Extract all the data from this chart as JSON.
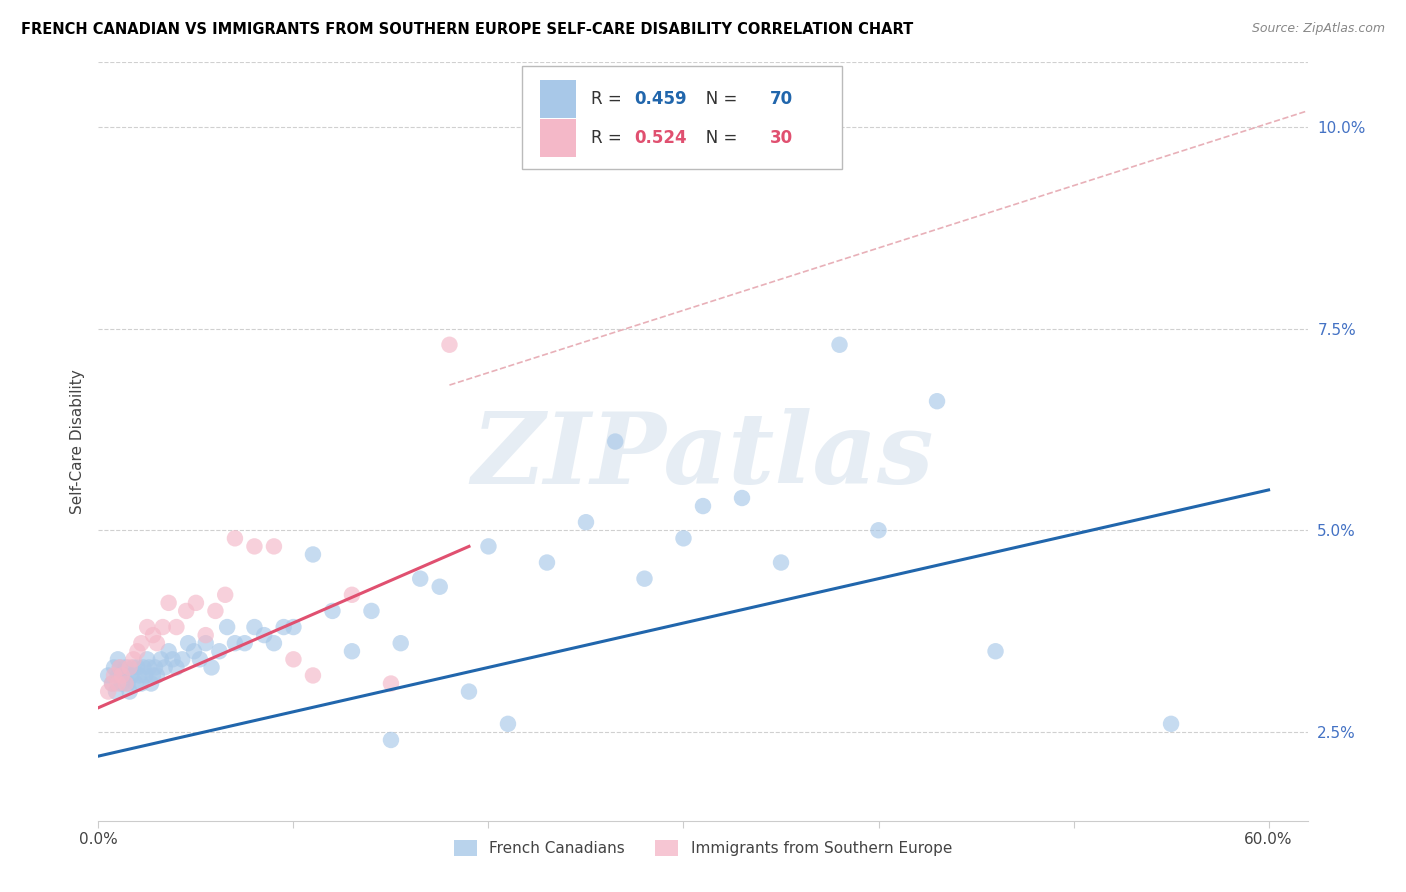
{
  "title": "FRENCH CANADIAN VS IMMIGRANTS FROM SOUTHERN EUROPE SELF-CARE DISABILITY CORRELATION CHART",
  "source": "Source: ZipAtlas.com",
  "ylabel": "Self-Care Disability",
  "watermark": "ZIPatlas",
  "xlim": [
    0.0,
    0.62
  ],
  "ylim": [
    0.014,
    0.108
  ],
  "xticks": [
    0.0,
    0.1,
    0.2,
    0.3,
    0.4,
    0.5,
    0.6
  ],
  "yticks": [
    0.025,
    0.05,
    0.075,
    0.1
  ],
  "ytick_labels": [
    "2.5%",
    "5.0%",
    "7.5%",
    "10.0%"
  ],
  "legend_label1": "French Canadians",
  "legend_label2": "Immigrants from Southern Europe",
  "R1": "0.459",
  "N1": "70",
  "R2": "0.524",
  "N2": "30",
  "color_blue": "#a8c8e8",
  "color_pink": "#f4b8c8",
  "line_color_blue": "#2166ac",
  "line_color_pink": "#e05070",
  "line_color_dashed": "#e8b0b8",
  "blue_line_x0": 0.0,
  "blue_line_y0": 0.022,
  "blue_line_x1": 0.6,
  "blue_line_y1": 0.055,
  "pink_line_x0": 0.0,
  "pink_line_y0": 0.028,
  "pink_line_x1": 0.19,
  "pink_line_y1": 0.048,
  "dashed_line_x": [
    0.18,
    0.62
  ],
  "dashed_line_y": [
    0.068,
    0.102
  ],
  "blue_x": [
    0.005,
    0.007,
    0.008,
    0.009,
    0.01,
    0.01,
    0.011,
    0.012,
    0.013,
    0.014,
    0.015,
    0.016,
    0.017,
    0.018,
    0.019,
    0.02,
    0.021,
    0.022,
    0.023,
    0.024,
    0.025,
    0.026,
    0.027,
    0.028,
    0.029,
    0.03,
    0.032,
    0.034,
    0.036,
    0.038,
    0.04,
    0.043,
    0.046,
    0.049,
    0.052,
    0.055,
    0.058,
    0.062,
    0.066,
    0.07,
    0.075,
    0.08,
    0.085,
    0.09,
    0.095,
    0.1,
    0.11,
    0.12,
    0.13,
    0.14,
    0.15,
    0.155,
    0.165,
    0.175,
    0.19,
    0.2,
    0.21,
    0.23,
    0.25,
    0.265,
    0.28,
    0.3,
    0.31,
    0.33,
    0.35,
    0.38,
    0.4,
    0.43,
    0.46,
    0.55
  ],
  "blue_y": [
    0.032,
    0.031,
    0.033,
    0.03,
    0.032,
    0.034,
    0.033,
    0.031,
    0.032,
    0.033,
    0.031,
    0.03,
    0.032,
    0.033,
    0.031,
    0.033,
    0.032,
    0.031,
    0.033,
    0.032,
    0.034,
    0.033,
    0.031,
    0.032,
    0.033,
    0.032,
    0.034,
    0.033,
    0.035,
    0.034,
    0.033,
    0.034,
    0.036,
    0.035,
    0.034,
    0.036,
    0.033,
    0.035,
    0.038,
    0.036,
    0.036,
    0.038,
    0.037,
    0.036,
    0.038,
    0.038,
    0.047,
    0.04,
    0.035,
    0.04,
    0.024,
    0.036,
    0.044,
    0.043,
    0.03,
    0.048,
    0.026,
    0.046,
    0.051,
    0.061,
    0.044,
    0.049,
    0.053,
    0.054,
    0.046,
    0.073,
    0.05,
    0.066,
    0.035,
    0.026
  ],
  "pink_x": [
    0.005,
    0.007,
    0.008,
    0.01,
    0.011,
    0.012,
    0.014,
    0.016,
    0.018,
    0.02,
    0.022,
    0.025,
    0.028,
    0.03,
    0.033,
    0.036,
    0.04,
    0.045,
    0.05,
    0.055,
    0.06,
    0.065,
    0.07,
    0.08,
    0.09,
    0.1,
    0.11,
    0.13,
    0.15,
    0.18
  ],
  "pink_y": [
    0.03,
    0.031,
    0.032,
    0.031,
    0.033,
    0.032,
    0.031,
    0.033,
    0.034,
    0.035,
    0.036,
    0.038,
    0.037,
    0.036,
    0.038,
    0.041,
    0.038,
    0.04,
    0.041,
    0.037,
    0.04,
    0.042,
    0.049,
    0.048,
    0.048,
    0.034,
    0.032,
    0.042,
    0.031,
    0.073
  ]
}
